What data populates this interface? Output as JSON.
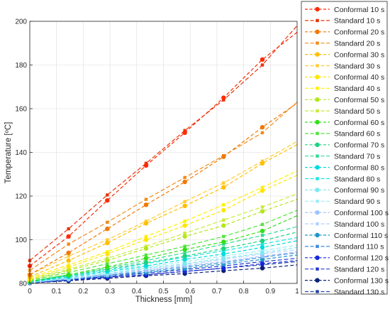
{
  "chart_data": {
    "type": "line",
    "xlabel": "Thickness [mm]",
    "ylabel": "Temperature [ºC]",
    "xlim": [
      0,
      1
    ],
    "ylim": [
      80,
      200
    ],
    "xticks": [
      "0",
      "0.1",
      "0.2",
      "0.3",
      "0.4",
      "0.5",
      "0.6",
      "0.7",
      "0.8",
      "0.9",
      "1"
    ],
    "yticks": [
      "80",
      "100",
      "120",
      "140",
      "160",
      "180",
      "200"
    ],
    "grid": true,
    "legend_position": "right",
    "marker_x": [
      0,
      0.145,
      0.29,
      0.435,
      0.58,
      0.725,
      0.87
    ],
    "series": [
      {
        "name": "Conformal 10 s",
        "style": "conformal",
        "color": "#ff2a00",
        "values": [
          88.0,
          101.5,
          118.0,
          134.0,
          149.0,
          165.0,
          182.5
        ],
        "end": 195.0
      },
      {
        "name": "Standard 10 s",
        "style": "standard",
        "color": "#e8340c",
        "values": [
          90.5,
          105.0,
          120.5,
          135.0,
          150.0,
          164.0,
          180.0
        ],
        "end": 198.0
      },
      {
        "name": "Conformal 20 s",
        "style": "conformal",
        "color": "#f07800",
        "values": [
          84.0,
          94.0,
          105.0,
          116.0,
          126.5,
          138.0,
          151.5
        ],
        "end": 162.5
      },
      {
        "name": "Standard 20 s",
        "style": "standard",
        "color": "#f08c1a",
        "values": [
          86.0,
          98.0,
          108.0,
          118.5,
          128.5,
          138.5,
          149.0
        ],
        "end": 163.0
      },
      {
        "name": "Conformal 30 s",
        "style": "conformal",
        "color": "#ffbf00",
        "values": [
          83.0,
          90.5,
          98.5,
          107.5,
          115.5,
          124.0,
          135.0
        ],
        "end": 143.5
      },
      {
        "name": "Standard 30 s",
        "style": "standard",
        "color": "#ffcc33",
        "values": [
          84.0,
          92.5,
          100.0,
          108.5,
          117.5,
          126.0,
          136.0
        ],
        "end": 145.0
      },
      {
        "name": "Conformal 40 s",
        "style": "conformal",
        "color": "#ffe600",
        "values": [
          82.0,
          87.5,
          93.5,
          100.0,
          106.5,
          113.5,
          122.5
        ],
        "end": 129.5
      },
      {
        "name": "Standard 40 s",
        "style": "standard",
        "color": "#fff000",
        "values": [
          82.5,
          88.5,
          94.5,
          101.5,
          108.5,
          116.0,
          124.0
        ],
        "end": 131.5
      },
      {
        "name": "Conformal 50 s",
        "style": "conformal",
        "color": "#b4e61e",
        "values": [
          81.5,
          86.0,
          90.5,
          96.0,
          101.5,
          106.5,
          113.0
        ],
        "end": 118.5
      },
      {
        "name": "Standard 50 s",
        "style": "standard",
        "color": "#c8eb3c",
        "values": [
          82.0,
          86.5,
          91.5,
          97.0,
          103.0,
          109.0,
          115.0
        ],
        "end": 121.0
      },
      {
        "name": "Conformal 60 s",
        "style": "conformal",
        "color": "#33e01a",
        "values": [
          81.0,
          84.0,
          87.5,
          91.5,
          95.5,
          99.0,
          104.0
        ],
        "end": 111.0
      },
      {
        "name": "Standard 60 s",
        "style": "standard",
        "color": "#50e63c",
        "values": [
          81.5,
          85.0,
          89.0,
          93.0,
          97.0,
          101.5,
          107.0
        ],
        "end": 113.5
      },
      {
        "name": "Conformal 70 s",
        "style": "conformal",
        "color": "#1ed282",
        "values": [
          80.8,
          83.5,
          86.5,
          89.5,
          92.5,
          96.0,
          99.5
        ],
        "end": 103.5
      },
      {
        "name": "Standard 70 s",
        "style": "standard",
        "color": "#32dc96",
        "values": [
          81.0,
          84.0,
          87.0,
          90.5,
          94.0,
          98.0,
          102.0
        ],
        "end": 106.0
      },
      {
        "name": "Conformal 80 s",
        "style": "conformal",
        "color": "#00dcdc",
        "values": [
          80.7,
          83.0,
          85.5,
          88.0,
          91.0,
          93.5,
          96.5
        ],
        "end": 99.5
      },
      {
        "name": "Standard 80 s",
        "style": "standard",
        "color": "#1ee6e6",
        "values": [
          80.8,
          83.5,
          86.0,
          89.0,
          92.0,
          95.0,
          98.0
        ],
        "end": 101.0
      },
      {
        "name": "Conformal 90 s",
        "style": "conformal",
        "color": "#7ee8f0",
        "values": [
          80.5,
          82.5,
          84.5,
          87.0,
          89.0,
          91.5,
          94.0
        ],
        "end": 96.5
      },
      {
        "name": "Standard 90 s",
        "style": "standard",
        "color": "#9aeef5",
        "values": [
          80.6,
          82.8,
          85.0,
          87.5,
          90.0,
          92.5,
          95.0
        ],
        "end": 97.5
      },
      {
        "name": "Conformal 100 s",
        "style": "conformal",
        "color": "#9ec4ff",
        "values": [
          80.5,
          82.0,
          84.0,
          86.0,
          88.0,
          90.0,
          92.5
        ],
        "end": 94.5
      },
      {
        "name": "Standard 100 s",
        "style": "standard",
        "color": "#b4d2ff",
        "values": [
          80.5,
          82.3,
          84.3,
          86.5,
          88.5,
          91.0,
          93.5
        ],
        "end": 95.5
      },
      {
        "name": "Conformal 110 s",
        "style": "conformal",
        "color": "#1e96c8",
        "values": [
          80.4,
          81.8,
          83.5,
          85.0,
          86.8,
          88.8,
          91.0
        ],
        "end": 93.0
      },
      {
        "name": "Standard 110 s",
        "style": "standard",
        "color": "#3c8cdc",
        "values": [
          80.4,
          82.0,
          83.8,
          85.5,
          87.5,
          89.5,
          92.0
        ],
        "end": 94.0
      },
      {
        "name": "Conformal 120 s",
        "style": "conformal",
        "color": "#1428dc",
        "values": [
          80.3,
          81.5,
          82.8,
          84.0,
          85.5,
          87.0,
          89.0
        ],
        "end": 90.5
      },
      {
        "name": "Standard 120 s",
        "style": "standard",
        "color": "#283cd2",
        "values": [
          80.3,
          81.7,
          83.2,
          84.7,
          86.3,
          88.0,
          90.0
        ],
        "end": 91.5
      },
      {
        "name": "Conformal 130 s",
        "style": "conformal",
        "color": "#0a2078",
        "values": [
          80.2,
          81.2,
          82.3,
          83.5,
          84.5,
          85.8,
          87.0
        ],
        "end": 88.5
      },
      {
        "name": "Standard 130 s",
        "style": "standard",
        "color": "#2846aa",
        "values": [
          80.2,
          81.5,
          82.8,
          84.0,
          85.5,
          87.0,
          88.5
        ],
        "end": 90.0
      }
    ]
  }
}
